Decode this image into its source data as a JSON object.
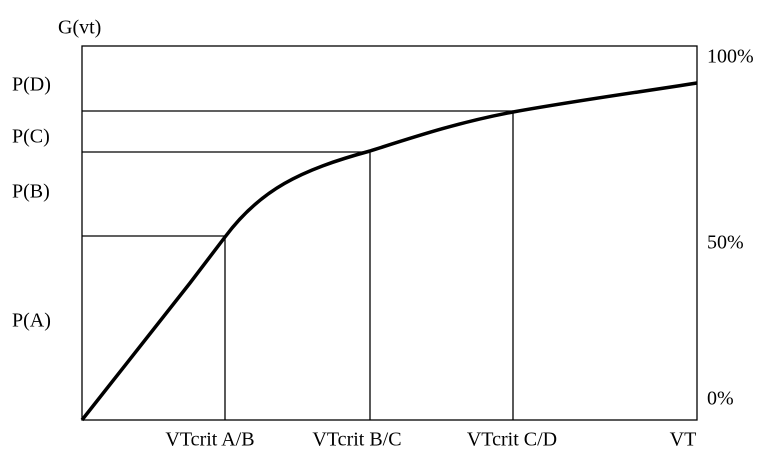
{
  "y_label": "G(vt)",
  "left_labels": [
    "P(D)",
    "P(C)",
    "P(B)",
    "P(A)"
  ],
  "right_labels": [
    "100%",
    "50%",
    "0%"
  ],
  "bottom_labels": [
    "VTcrit A/B",
    "VTcrit B/C",
    "VTcrit C/D",
    "VT"
  ]
}
